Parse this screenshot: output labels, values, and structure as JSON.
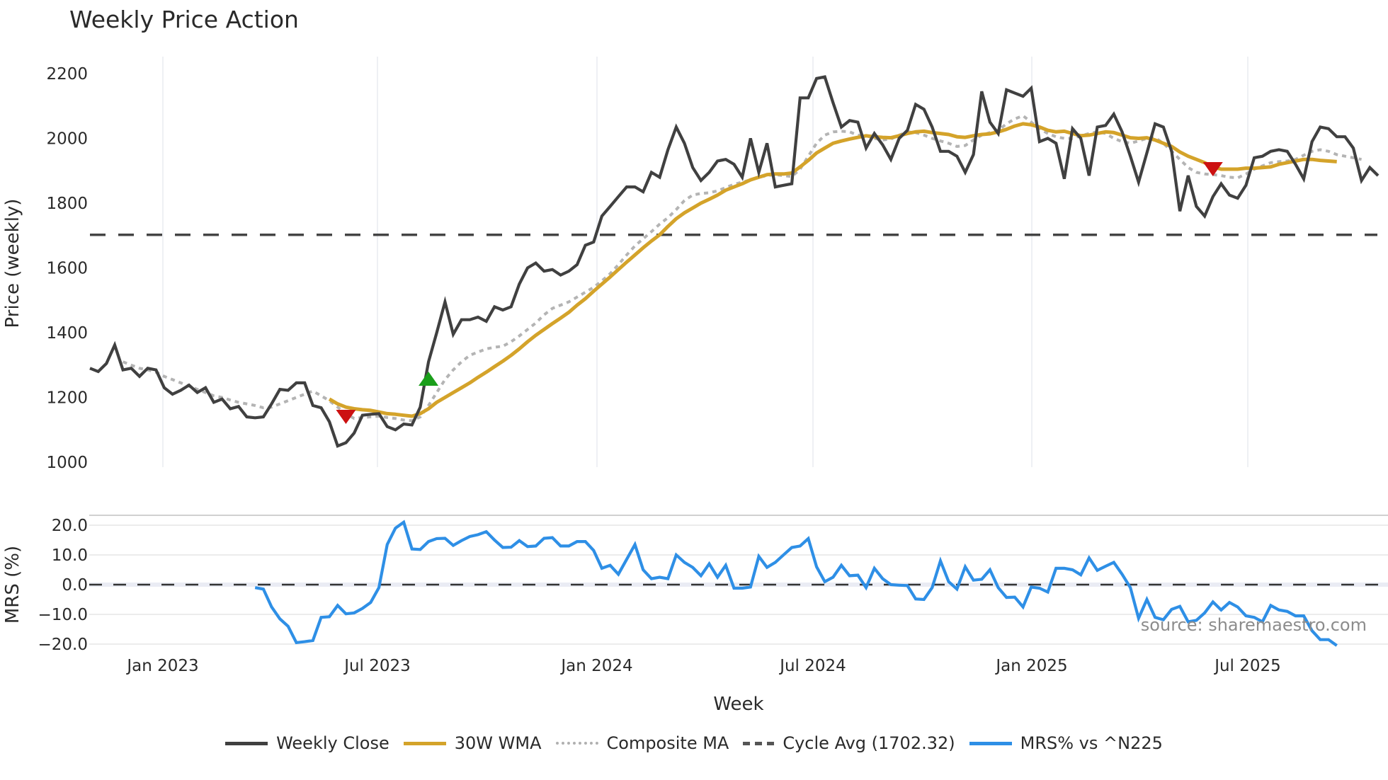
{
  "title": "Weekly Price Action",
  "source_label": "source: sharemaestro.com",
  "legend": [
    {
      "label": "Weekly Close",
      "color": "#404040",
      "style": "solid"
    },
    {
      "label": "30W WMA",
      "color": "#d4a32a",
      "style": "solid"
    },
    {
      "label": "Composite MA",
      "color": "#b0b0b0",
      "style": "dotted"
    },
    {
      "label": "Cycle Avg (1702.32)",
      "color": "#555555",
      "style": "dashed"
    },
    {
      "label": "MRS% vs ^N225",
      "color": "#2e8fe6",
      "style": "solid"
    }
  ],
  "chart_data": [
    {
      "type": "line",
      "title": "Weekly Price Action",
      "xlabel": "Week",
      "ylabel": "Price (weekly)",
      "ylim": [
        1000,
        2200
      ],
      "yticks": [
        1000,
        1200,
        1400,
        1600,
        1800,
        2000,
        2200
      ],
      "xticks": [
        "Jan 2023",
        "Jul 2023",
        "Jan 2024",
        "Jul 2024",
        "Jan 2025",
        "Jul 2025"
      ],
      "grid": true,
      "legend_position": "bottom",
      "reference_line": {
        "name": "Cycle Avg",
        "value": 1702.32
      },
      "x_start": "Nov 2022",
      "x_step": "1 week",
      "series": [
        {
          "name": "Weekly Close",
          "values": [
            1290,
            1280,
            1305,
            1362,
            1285,
            1290,
            1265,
            1290,
            1285,
            1230,
            1210,
            1222,
            1238,
            1215,
            1230,
            1185,
            1195,
            1165,
            1172,
            1140,
            1137,
            1140,
            1180,
            1225,
            1222,
            1245,
            1245,
            1175,
            1168,
            1125,
            1050,
            1060,
            1090,
            1145,
            1148,
            1150,
            1110,
            1100,
            1118,
            1115,
            1170,
            1310,
            1400,
            1495,
            1395,
            1440,
            1440,
            1448,
            1435,
            1480,
            1470,
            1480,
            1550,
            1600,
            1615,
            1590,
            1595,
            1578,
            1590,
            1610,
            1670,
            1680,
            1760,
            1790,
            1820,
            1850,
            1850,
            1835,
            1895,
            1880,
            1965,
            2035,
            1985,
            1910,
            1870,
            1895,
            1930,
            1935,
            1920,
            1880,
            2000,
            1895,
            1985,
            1850,
            1855,
            1860,
            2125,
            2125,
            2185,
            2190,
            2110,
            2035,
            2055,
            2050,
            1970,
            2015,
            1980,
            1935,
            2000,
            2025,
            2105,
            2090,
            2035,
            1960,
            1960,
            1945,
            1895,
            1950,
            2145,
            2050,
            2015,
            2150,
            2140,
            2130,
            2155,
            1990,
            2000,
            1985,
            1875,
            2030,
            2000,
            1885,
            2035,
            2040,
            2075,
            2020,
            1945,
            1865,
            1955,
            2045,
            2035,
            1960,
            1775,
            1885,
            1790,
            1760,
            1820,
            1860,
            1825,
            1815,
            1855,
            1940,
            1945,
            1960,
            1965,
            1960,
            1920,
            1875,
            1990,
            2035,
            2030,
            2005,
            2005,
            1970,
            1870,
            1910,
            1885
          ]
        },
        {
          "name": "30W WMA",
          "start_index": 29,
          "values": [
            1195,
            1180,
            1170,
            1165,
            1162,
            1160,
            1155,
            1150,
            1148,
            1145,
            1142,
            1150,
            1165,
            1185,
            1200,
            1215,
            1230,
            1245,
            1262,
            1278,
            1295,
            1312,
            1330,
            1350,
            1372,
            1392,
            1410,
            1428,
            1445,
            1463,
            1485,
            1505,
            1528,
            1550,
            1572,
            1595,
            1618,
            1640,
            1662,
            1683,
            1702,
            1728,
            1752,
            1770,
            1785,
            1800,
            1812,
            1825,
            1840,
            1850,
            1860,
            1872,
            1880,
            1888,
            1890,
            1890,
            1893,
            1912,
            1932,
            1955,
            1970,
            1985,
            1992,
            1998,
            2003,
            2008,
            2005,
            2003,
            2002,
            2008,
            2015,
            2020,
            2022,
            2018,
            2015,
            2012,
            2005,
            2003,
            2008,
            2012,
            2014,
            2020,
            2028,
            2038,
            2045,
            2042,
            2035,
            2025,
            2020,
            2022,
            2015,
            2008,
            2010,
            2015,
            2020,
            2018,
            2010,
            2002,
            2000,
            2002,
            1995,
            1985,
            1975,
            1958,
            1945,
            1935,
            1925,
            1912,
            1905,
            1905,
            1905,
            1908,
            1908,
            1910,
            1912,
            1920,
            1925,
            1930,
            1935,
            1935,
            1932,
            1930,
            1928
          ]
        },
        {
          "name": "Composite MA",
          "start_index": 4,
          "values": [
            1310,
            1300,
            1290,
            1285,
            1278,
            1265,
            1255,
            1245,
            1235,
            1225,
            1215,
            1205,
            1200,
            1192,
            1185,
            1180,
            1175,
            1168,
            1170,
            1180,
            1190,
            1200,
            1210,
            1220,
            1205,
            1190,
            1170,
            1150,
            1135,
            1138,
            1140,
            1142,
            1138,
            1135,
            1130,
            1128,
            1140,
            1175,
            1215,
            1255,
            1285,
            1310,
            1330,
            1340,
            1350,
            1355,
            1358,
            1372,
            1390,
            1410,
            1430,
            1455,
            1475,
            1485,
            1495,
            1510,
            1525,
            1540,
            1560,
            1582,
            1610,
            1640,
            1668,
            1690,
            1712,
            1735,
            1755,
            1780,
            1808,
            1825,
            1830,
            1832,
            1838,
            1848,
            1858,
            1865,
            1872,
            1880,
            1885,
            1888,
            1885,
            1882,
            1905,
            1945,
            1985,
            2010,
            2020,
            2022,
            2020,
            2010,
            2008,
            2000,
            1995,
            1998,
            2010,
            2020,
            2018,
            2010,
            2000,
            1992,
            1985,
            1975,
            1978,
            1995,
            2010,
            2018,
            2025,
            2045,
            2060,
            2070,
            2050,
            2030,
            2015,
            2005,
            2000,
            2000,
            2008,
            2015,
            2020,
            2015,
            2000,
            1990,
            1985,
            1992,
            2000,
            2002,
            1985,
            1960,
            1935,
            1910,
            1895,
            1890,
            1888,
            1885,
            1880,
            1878,
            1890,
            1905,
            1915,
            1925,
            1928,
            1930,
            1935,
            1948,
            1960,
            1965,
            1960,
            1950,
            1945,
            1940,
            1935
          ]
        },
        {
          "name": "Cycle Avg",
          "value": 1702.32
        }
      ],
      "markers": [
        {
          "type": "sell",
          "shape": "triangle-down",
          "color": "#cc1111",
          "x_index": 31,
          "price": 1140
        },
        {
          "type": "buy",
          "shape": "triangle-up",
          "color": "#1a9e1a",
          "x_index": 41,
          "price": 1258
        },
        {
          "type": "sell",
          "shape": "triangle-down",
          "color": "#cc1111",
          "x_index": 136,
          "price": 1905
        }
      ]
    },
    {
      "type": "line",
      "title": "",
      "xlabel": "Week",
      "ylabel": "MRS (%)",
      "ylim": [
        -20,
        20
      ],
      "yticks": [
        "-20.0",
        "-10.0",
        "0.0",
        "10.0",
        "20.0"
      ],
      "reference_line": {
        "value": 0
      },
      "series": [
        {
          "name": "MRS% vs ^N225",
          "start_index": 20,
          "values": [
            -1.0,
            -1.5,
            -7.5,
            -11.5,
            -14,
            -19.5,
            -19.2,
            -18.8,
            -11,
            -10.8,
            -7,
            -9.8,
            -9.5,
            -8,
            -6,
            -1,
            13.5,
            19,
            21,
            12,
            11.8,
            14.5,
            15.5,
            15.6,
            13.2,
            14.8,
            16.2,
            16.8,
            17.8,
            15,
            12.5,
            12.6,
            14.8,
            12.8,
            13,
            15.6,
            15.8,
            13,
            13,
            14.5,
            14.5,
            11.5,
            5.5,
            6.5,
            3.5,
            8.5,
            13.5,
            5,
            2,
            2.5,
            2,
            10,
            7.5,
            5.8,
            3,
            7,
            2.5,
            6.5,
            -1.2,
            -1.2,
            -0.8,
            9.5,
            5.8,
            7.5,
            10,
            12.5,
            13,
            15.5,
            6,
            1,
            2.5,
            6.5,
            3,
            3.2,
            -1,
            5.5,
            2,
            0,
            -0.2,
            -0.3,
            -4.8,
            -5,
            -1,
            8,
            1,
            -1.5,
            6,
            1.5,
            1.8,
            5,
            -1,
            -4.3,
            -4.2,
            -7.5,
            -0.8,
            -1.2,
            -2.5,
            5.5,
            5.5,
            5,
            3.3,
            9,
            4.8,
            6.2,
            7.5,
            3.5,
            -1,
            -11.3,
            -5,
            -11,
            -11.8,
            -8.3,
            -7.3,
            -12.5,
            -12,
            -9.5,
            -5.8,
            -8.5,
            -6,
            -7.5,
            -10.5,
            -11,
            -12.5,
            -7,
            -8.5,
            -9,
            -10.5,
            -10.5,
            -15.5,
            -18.5,
            -18.5,
            -20.5
          ]
        }
      ]
    }
  ],
  "axes": {
    "price_ylabel": "Price (weekly)",
    "mrs_ylabel": "MRS (%)",
    "xlabel": "Week",
    "price_ticks": [
      "2200",
      "2000",
      "1800",
      "1600",
      "1400",
      "1200",
      "1000"
    ],
    "mrs_ticks": [
      "20.0",
      "10.0",
      "0.0",
      "−10.0",
      "−20.0"
    ],
    "x_ticks": [
      "Jan 2023",
      "Jul 2023",
      "Jan 2024",
      "Jul 2024",
      "Jan 2025",
      "Jul 2025"
    ]
  }
}
